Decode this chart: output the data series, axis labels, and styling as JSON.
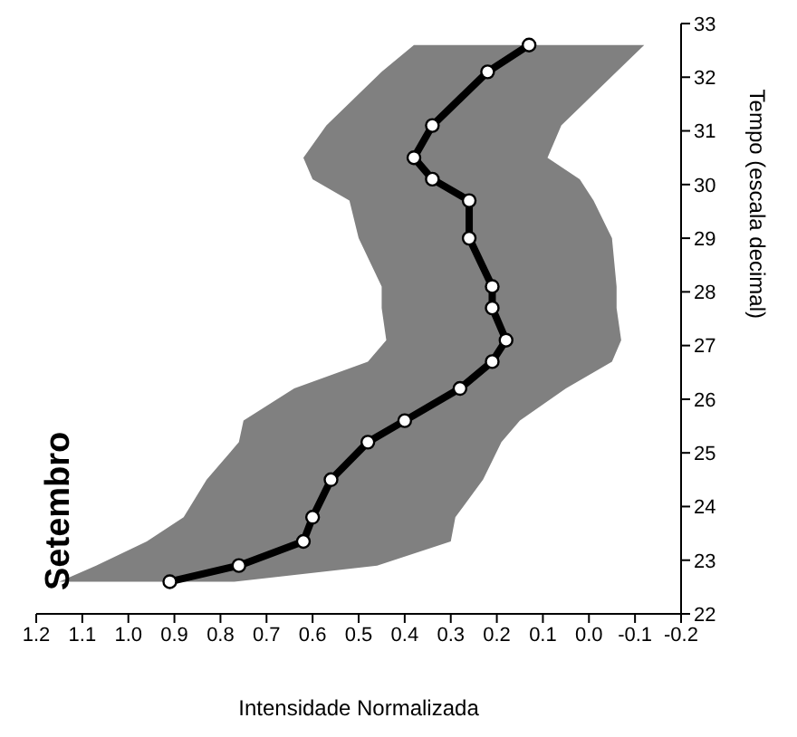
{
  "chart_data": {
    "type": "line",
    "orientation": "horizontal",
    "xlabel": "Intensidade Normalizada",
    "ylabel": "Tempo (escala decimal)",
    "annotations": [
      "Setembro"
    ],
    "xlim": [
      1.2,
      -0.2
    ],
    "xticks": [
      1.2,
      1.1,
      {
        "value": 1,
        "label": "1.0"
      },
      0.9,
      0.8,
      0.7,
      0.6,
      0.5,
      0.4,
      0.3,
      0.2,
      0.1,
      {
        "value": 0,
        "label": "0.0"
      },
      -0.1,
      -0.2
    ],
    "ylim": [
      22,
      33
    ],
    "yticks": [
      22,
      23,
      24,
      25,
      26,
      27,
      28,
      29,
      30,
      31,
      32,
      33
    ],
    "grid": false,
    "marker": "circle",
    "line_style": "solid",
    "series": [
      {
        "color": "#000000",
        "x": [
          22.6,
          22.9,
          23.35,
          23.8,
          24.5,
          25.2,
          25.6,
          26.2,
          26.7,
          27.1,
          27.7,
          28.1,
          29.0,
          29.7,
          30.1,
          30.5,
          31.1,
          32.1,
          32.6
        ],
        "values": [
          0.91,
          0.76,
          0.62,
          0.6,
          0.56,
          0.48,
          0.4,
          0.28,
          0.21,
          0.18,
          0.21,
          0.21,
          0.26,
          0.26,
          0.34,
          0.38,
          0.34,
          0.22,
          0.13
        ],
        "lower": [
          0.77,
          0.46,
          0.3,
          0.29,
          0.23,
          0.19,
          0.15,
          0.05,
          -0.05,
          -0.07,
          -0.06,
          -0.06,
          -0.05,
          -0.01,
          0.02,
          0.09,
          0.06,
          -0.06,
          -0.12
        ],
        "upper": [
          1.15,
          1.07,
          0.96,
          0.88,
          0.83,
          0.76,
          0.75,
          0.64,
          0.48,
          0.44,
          0.45,
          0.45,
          0.5,
          0.52,
          0.6,
          0.62,
          0.57,
          0.45,
          0.38
        ]
      }
    ]
  }
}
